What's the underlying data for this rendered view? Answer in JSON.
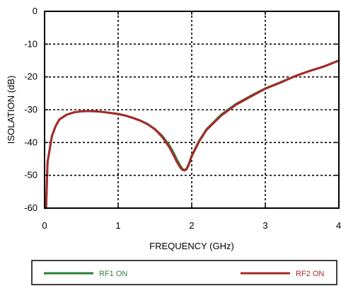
{
  "chart_data": {
    "type": "line",
    "xlabel": "FREQUENCY (GHz)",
    "ylabel": "ISOLATION  (dB)",
    "xlim": [
      0,
      4
    ],
    "ylim": [
      -60,
      0
    ],
    "x_ticks": [
      "0",
      "1",
      "2",
      "3",
      "4"
    ],
    "y_ticks": [
      "0",
      "-10",
      "-20",
      "-30",
      "-40",
      "-50",
      "-60"
    ],
    "grid": true,
    "legend": "bottom",
    "series": [
      {
        "name": "RF1 ON",
        "color": "#2e7d3a",
        "x": [
          0.02,
          0.04,
          0.07,
          0.1,
          0.15,
          0.2,
          0.3,
          0.4,
          0.5,
          0.6,
          0.7,
          0.8,
          0.9,
          1.0,
          1.1,
          1.2,
          1.3,
          1.4,
          1.5,
          1.6,
          1.7,
          1.75,
          1.8,
          1.85,
          1.88,
          1.9,
          1.93,
          1.96,
          2.0,
          2.1,
          2.2,
          2.4,
          2.6,
          2.8,
          3.0,
          3.2,
          3.4,
          3.6,
          3.8,
          4.0
        ],
        "y": [
          -60,
          -46,
          -42,
          -38,
          -35,
          -33,
          -31.5,
          -30.8,
          -30.5,
          -30.4,
          -30.5,
          -30.7,
          -31.0,
          -31.3,
          -31.8,
          -32.5,
          -33.3,
          -34.4,
          -35.9,
          -38.0,
          -41.0,
          -43.0,
          -45.3,
          -47.3,
          -48.2,
          -48.4,
          -48.0,
          -46.5,
          -44.0,
          -39.5,
          -36.0,
          -31.5,
          -28.3,
          -25.8,
          -23.5,
          -21.7,
          -19.8,
          -18.2,
          -16.8,
          -15.0
        ]
      },
      {
        "name": "RF2 ON",
        "color": "#a52a2a",
        "x": [
          0.02,
          0.04,
          0.07,
          0.1,
          0.15,
          0.2,
          0.3,
          0.4,
          0.5,
          0.6,
          0.7,
          0.8,
          0.9,
          1.0,
          1.1,
          1.2,
          1.3,
          1.4,
          1.5,
          1.6,
          1.7,
          1.75,
          1.8,
          1.85,
          1.88,
          1.9,
          1.93,
          1.96,
          2.0,
          2.1,
          2.2,
          2.4,
          2.6,
          2.8,
          3.0,
          3.2,
          3.4,
          3.6,
          3.8,
          4.0
        ],
        "y": [
          -60,
          -46,
          -42,
          -38,
          -35,
          -33,
          -31.5,
          -30.8,
          -30.5,
          -30.4,
          -30.5,
          -30.7,
          -31.0,
          -31.3,
          -31.8,
          -32.5,
          -33.3,
          -34.4,
          -36.0,
          -38.3,
          -41.6,
          -43.7,
          -46.0,
          -47.8,
          -48.4,
          -48.5,
          -48.2,
          -46.8,
          -44.2,
          -39.7,
          -36.2,
          -31.8,
          -28.5,
          -26.0,
          -23.6,
          -21.8,
          -19.8,
          -18.2,
          -16.8,
          -15.0
        ]
      }
    ]
  }
}
